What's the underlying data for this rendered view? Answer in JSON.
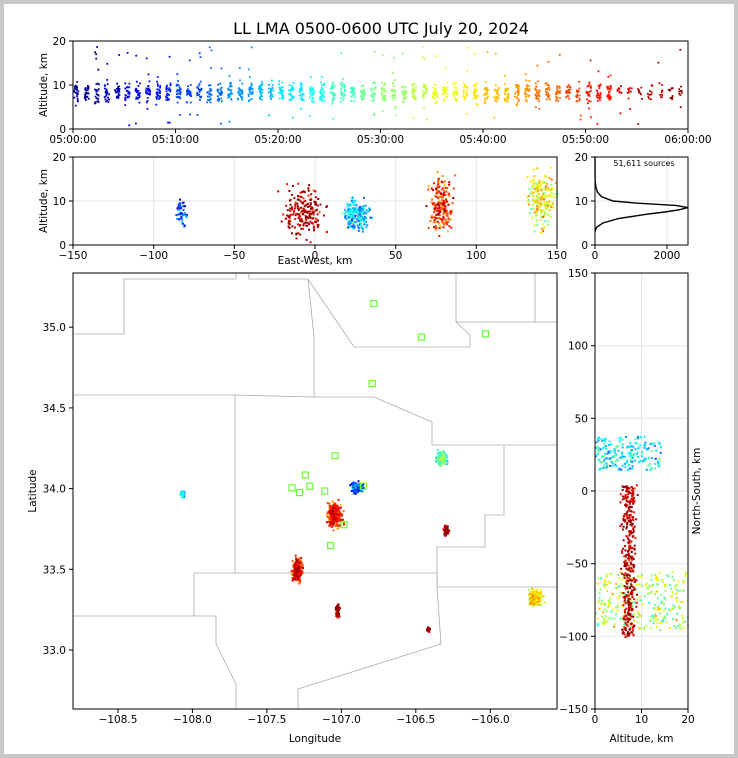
{
  "title": "LL LMA 0500-0600 UTC July 20, 2024",
  "time_height": {
    "ylabel": "Altitude, km",
    "x_ticks": [
      "05:00:00",
      "05:10:00",
      "05:20:00",
      "05:30:00",
      "05:40:00",
      "05:50:00",
      "06:00:00"
    ],
    "y_ticks": [
      "0",
      "10",
      "20"
    ]
  },
  "ew_height": {
    "xlabel": "East-West, km",
    "ylabel": "Altitude, km",
    "x_ticks": [
      "−150",
      "−100",
      "−50",
      "0",
      "50",
      "100",
      "150"
    ],
    "y_ticks": [
      "0",
      "10",
      "20"
    ]
  },
  "histogram": {
    "annotation": "51,611 sources",
    "x_ticks": [
      "0",
      "2000"
    ],
    "y_ticks": [
      "0",
      "10",
      "20"
    ]
  },
  "plan_view": {
    "xlabel": "Longitude",
    "ylabel": "Latitude",
    "x_ticks": [
      "−108.5",
      "−108.0",
      "−107.5",
      "−107.0",
      "−106.5",
      "−106.0"
    ],
    "y_ticks": [
      "33.0",
      "33.5",
      "34.0",
      "34.5",
      "35.0"
    ]
  },
  "ns_height": {
    "xlabel": "Altitude, km",
    "ylabel": "North-South, km",
    "x_ticks": [
      "0",
      "10",
      "20"
    ],
    "y_ticks": [
      "−150",
      "−100",
      "−50",
      "0",
      "50",
      "100",
      "150"
    ]
  },
  "colors": {
    "early": "#00008f",
    "late": "#800000",
    "station": "#66ff33",
    "map_border": "#aaaaaa"
  },
  "chart_data": [
    {
      "type": "scatter",
      "panel": "time-height",
      "x_range": [
        "05:00:00",
        "06:00:00"
      ],
      "ylim": [
        0,
        20
      ],
      "color_by": "time",
      "point_groups_x_min": [
        0,
        1,
        2,
        3,
        4,
        5,
        6,
        7,
        8,
        9,
        10,
        11,
        12,
        13,
        14,
        15,
        16,
        17,
        18,
        19,
        20,
        21,
        22,
        23,
        24,
        25,
        26,
        27,
        28,
        29,
        30,
        31,
        32,
        33,
        34,
        35,
        36,
        37,
        38,
        39,
        40,
        41,
        42,
        43,
        44,
        45,
        46,
        47,
        48,
        49,
        50,
        51,
        52,
        53,
        54,
        55,
        56,
        57,
        58,
        59
      ],
      "approx_altitude_band_km": [
        3,
        14
      ]
    },
    {
      "type": "scatter",
      "panel": "east-west-height",
      "xlim": [
        -150,
        150
      ],
      "ylim": [
        0,
        20
      ],
      "clusters": [
        {
          "x_km": -84,
          "alt_km": [
            3,
            12
          ]
        },
        {
          "x_km": -8,
          "alt_km": [
            0,
            16
          ]
        },
        {
          "x_km": 25,
          "alt_km": [
            2,
            12
          ]
        },
        {
          "x_km": 78,
          "alt_km": [
            0,
            18
          ]
        },
        {
          "x_km": 140,
          "alt_km": [
            2,
            20
          ]
        }
      ]
    },
    {
      "type": "line",
      "panel": "altitude-histogram",
      "total_sources": 51611,
      "xlim": [
        0,
        2600
      ],
      "ylim": [
        0,
        20
      ],
      "profile": [
        {
          "alt_km": 3,
          "count": 0
        },
        {
          "alt_km": 4,
          "count": 40
        },
        {
          "alt_km": 5,
          "count": 220
        },
        {
          "alt_km": 6,
          "count": 650
        },
        {
          "alt_km": 7,
          "count": 1450
        },
        {
          "alt_km": 7.5,
          "count": 1950
        },
        {
          "alt_km": 8,
          "count": 2350
        },
        {
          "alt_km": 8.5,
          "count": 2600
        },
        {
          "alt_km": 9,
          "count": 2250
        },
        {
          "alt_km": 9.5,
          "count": 1200
        },
        {
          "alt_km": 10,
          "count": 500
        },
        {
          "alt_km": 11,
          "count": 180
        },
        {
          "alt_km": 12,
          "count": 70
        },
        {
          "alt_km": 13,
          "count": 30
        },
        {
          "alt_km": 14,
          "count": 10
        },
        {
          "alt_km": 15,
          "count": 3
        },
        {
          "alt_km": 20,
          "count": 0
        }
      ]
    },
    {
      "type": "scatter",
      "panel": "plan-view",
      "xlim": [
        -108.85,
        -105.6
      ],
      "ylim": [
        32.63,
        35.35
      ],
      "stations": [
        {
          "lon": -106.83,
          "lat": 35.16
        },
        {
          "lon": -106.51,
          "lat": 34.95
        },
        {
          "lon": -106.08,
          "lat": 34.97
        },
        {
          "lon": -106.84,
          "lat": 34.66
        },
        {
          "lon": -107.09,
          "lat": 34.21
        },
        {
          "lon": -107.29,
          "lat": 34.09
        },
        {
          "lon": -107.38,
          "lat": 34.01
        },
        {
          "lon": -107.26,
          "lat": 34.02
        },
        {
          "lon": -107.33,
          "lat": 33.98
        },
        {
          "lon": -107.16,
          "lat": 33.99
        },
        {
          "lon": -106.9,
          "lat": 34.02
        },
        {
          "lon": -107.03,
          "lat": 33.78
        },
        {
          "lon": -107.12,
          "lat": 33.65
        }
      ],
      "clusters": [
        {
          "lon": -108.12,
          "lat": 33.98
        },
        {
          "lon": -106.38,
          "lat": 34.2
        },
        {
          "lon": -106.35,
          "lat": 33.75
        },
        {
          "lon": -107.1,
          "lat": 33.85
        },
        {
          "lon": -106.95,
          "lat": 34.02
        },
        {
          "lon": -107.35,
          "lat": 33.5
        },
        {
          "lon": -107.08,
          "lat": 33.25
        },
        {
          "lon": -105.75,
          "lat": 33.33
        },
        {
          "lon": -106.47,
          "lat": 33.13
        }
      ]
    },
    {
      "type": "scatter",
      "panel": "north-south-height",
      "xlim": [
        0,
        20
      ],
      "ylim": [
        -150,
        150
      ],
      "clusters": [
        {
          "alt_km": [
            0,
            14
          ],
          "y_km": [
            15,
            38
          ]
        },
        {
          "alt_km": [
            0,
            20
          ],
          "y_km": [
            -95,
            -55
          ]
        },
        {
          "alt_km": [
            2,
            12
          ],
          "y_km": [
            -100,
            5
          ]
        }
      ]
    }
  ]
}
